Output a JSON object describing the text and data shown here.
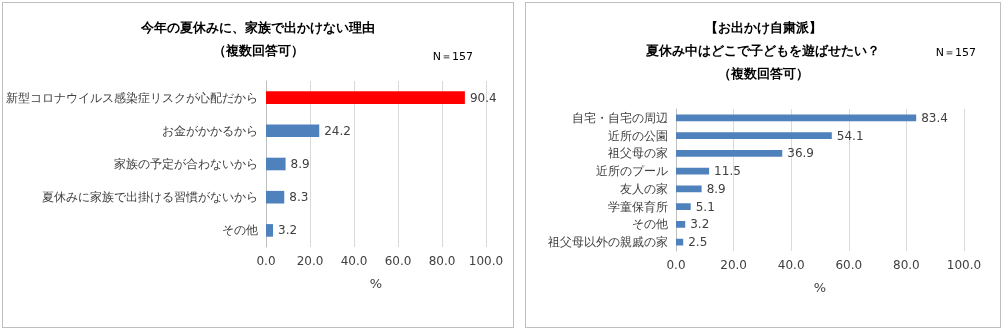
{
  "chart_data": [
    {
      "type": "bar",
      "orientation": "horizontal",
      "title": "今年の夏休みに、家族で出かけない理由",
      "subtitle": "（複数回答可）",
      "annotations": [
        "N＝157"
      ],
      "xlabel": "%",
      "categories": [
        "新型コロナウイルス感染症リスクが心配だから",
        "お金がかかるから",
        "家族の予定が合わないから",
        "夏休みに家族で出掛ける習慣がないから",
        "その他"
      ],
      "values": [
        90.4,
        24.2,
        8.9,
        8.3,
        3.2
      ],
      "colors": [
        "#ff0000",
        "#4f81bd",
        "#4f81bd",
        "#4f81bd",
        "#4f81bd"
      ],
      "xlim": [
        0,
        100
      ],
      "xticks": [
        {
          "value": 0,
          "label": "0.0"
        },
        {
          "value": 20,
          "label": "20.0"
        },
        {
          "value": 40,
          "label": "40.0"
        },
        {
          "value": 60,
          "label": "60.0"
        },
        {
          "value": 80,
          "label": "80.0"
        },
        {
          "value": 100,
          "label": "100.0"
        }
      ],
      "grid": "x",
      "data_labels": true
    },
    {
      "type": "bar",
      "orientation": "horizontal",
      "title": "【お出かけ自粛派】",
      "subtitle": "夏休み中はどこで子どもを遊ばせたい？",
      "annotations": [
        "（複数回答可）",
        "N＝157"
      ],
      "xlabel": "%",
      "categories": [
        "自宅・自宅の周辺",
        "近所の公園",
        "祖父母の家",
        "近所のプール",
        "友人の家",
        "学童保育所",
        "その他",
        "祖父母以外の親戚の家"
      ],
      "values": [
        83.4,
        54.1,
        36.9,
        11.5,
        8.9,
        5.1,
        3.2,
        2.5
      ],
      "color": "#4f81bd",
      "xlim": [
        0,
        100
      ],
      "xticks": [
        {
          "value": 0,
          "label": "0.0"
        },
        {
          "value": 20,
          "label": "20.0"
        },
        {
          "value": 40,
          "label": "40.0"
        },
        {
          "value": 60,
          "label": "60.0"
        },
        {
          "value": 80,
          "label": "80.0"
        },
        {
          "value": 100,
          "label": "100.0"
        }
      ],
      "grid": "x",
      "data_labels": true
    }
  ]
}
